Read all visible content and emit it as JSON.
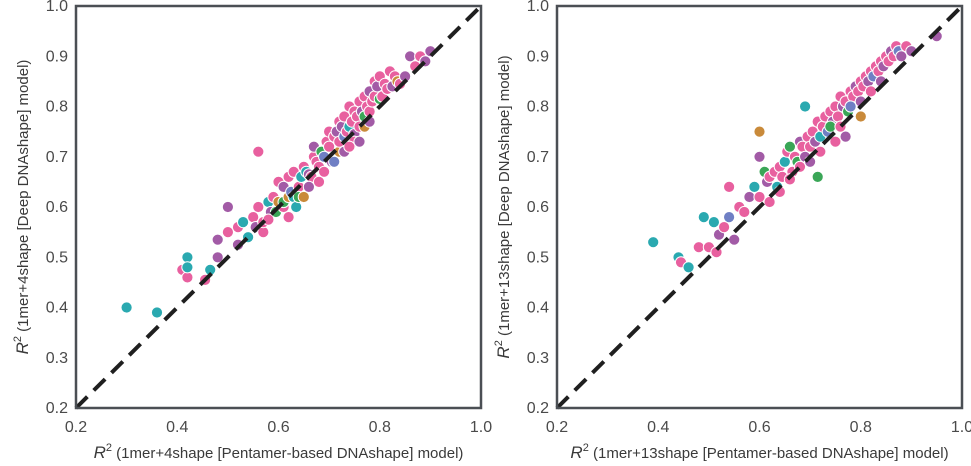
{
  "palette": [
    "#e8609f",
    "#a25ba6",
    "#2aa9b0",
    "#3aa657",
    "#c98a3a",
    "#6f7fc4"
  ],
  "chart_data": [
    {
      "type": "scatter",
      "xlabel_prefix": "R",
      "xlabel_sup": "2",
      "xlabel_text": " (1mer+4shape [Pentamer-based DNAshape] model)",
      "ylabel_prefix": "R",
      "ylabel_sup": "2",
      "ylabel_text": " (1mer+4shape [Deep DNAshape] model)",
      "xlim": [
        0.2,
        1.0
      ],
      "ylim": [
        0.2,
        1.0
      ],
      "xticks": [
        "0.2",
        "0.4",
        "0.6",
        "0.8",
        "1.0"
      ],
      "yticks": [
        "0.2",
        "0.3",
        "0.4",
        "0.5",
        "0.6",
        "0.7",
        "0.8",
        "0.9",
        "1.0"
      ],
      "reference_line": "y = x",
      "grid": false,
      "points": [
        [
          0.3,
          0.4,
          2
        ],
        [
          0.36,
          0.39,
          2
        ],
        [
          0.42,
          0.5,
          2
        ],
        [
          0.41,
          0.475,
          0
        ],
        [
          0.42,
          0.46,
          0
        ],
        [
          0.42,
          0.48,
          2
        ],
        [
          0.455,
          0.455,
          0
        ],
        [
          0.465,
          0.475,
          2
        ],
        [
          0.48,
          0.5,
          1
        ],
        [
          0.48,
          0.535,
          1
        ],
        [
          0.5,
          0.55,
          0
        ],
        [
          0.5,
          0.6,
          1
        ],
        [
          0.52,
          0.525,
          1
        ],
        [
          0.52,
          0.56,
          0
        ],
        [
          0.53,
          0.57,
          2
        ],
        [
          0.54,
          0.54,
          2
        ],
        [
          0.55,
          0.58,
          0
        ],
        [
          0.56,
          0.71,
          0
        ],
        [
          0.56,
          0.6,
          0
        ],
        [
          0.555,
          0.56,
          1
        ],
        [
          0.57,
          0.55,
          0
        ],
        [
          0.57,
          0.57,
          0
        ],
        [
          0.58,
          0.61,
          2
        ],
        [
          0.585,
          0.59,
          1
        ],
        [
          0.59,
          0.62,
          0
        ],
        [
          0.595,
          0.59,
          3
        ],
        [
          0.6,
          0.61,
          4
        ],
        [
          0.6,
          0.65,
          0
        ],
        [
          0.61,
          0.6,
          0
        ],
        [
          0.61,
          0.61,
          3
        ],
        [
          0.61,
          0.64,
          1
        ],
        [
          0.62,
          0.62,
          4
        ],
        [
          0.62,
          0.66,
          0
        ],
        [
          0.625,
          0.63,
          5
        ],
        [
          0.63,
          0.62,
          2
        ],
        [
          0.63,
          0.67,
          0
        ],
        [
          0.635,
          0.6,
          2
        ],
        [
          0.64,
          0.64,
          0
        ],
        [
          0.64,
          0.62,
          3
        ],
        [
          0.645,
          0.66,
          2
        ],
        [
          0.65,
          0.62,
          4
        ],
        [
          0.65,
          0.68,
          0
        ],
        [
          0.655,
          0.67,
          2
        ],
        [
          0.66,
          0.665,
          1
        ],
        [
          0.665,
          0.66,
          0
        ],
        [
          0.67,
          0.7,
          0
        ],
        [
          0.67,
          0.72,
          1
        ],
        [
          0.675,
          0.69,
          0
        ],
        [
          0.68,
          0.68,
          0
        ],
        [
          0.685,
          0.71,
          3
        ],
        [
          0.69,
          0.7,
          5
        ],
        [
          0.695,
          0.73,
          0
        ],
        [
          0.7,
          0.72,
          0
        ],
        [
          0.7,
          0.75,
          0
        ],
        [
          0.705,
          0.69,
          1
        ],
        [
          0.71,
          0.74,
          0
        ],
        [
          0.715,
          0.75,
          1
        ],
        [
          0.72,
          0.71,
          4
        ],
        [
          0.72,
          0.73,
          0
        ],
        [
          0.72,
          0.77,
          0
        ],
        [
          0.725,
          0.76,
          1
        ],
        [
          0.73,
          0.74,
          5
        ],
        [
          0.73,
          0.78,
          0
        ],
        [
          0.735,
          0.75,
          0
        ],
        [
          0.74,
          0.8,
          0
        ],
        [
          0.74,
          0.76,
          2
        ],
        [
          0.745,
          0.77,
          0
        ],
        [
          0.75,
          0.79,
          0
        ],
        [
          0.75,
          0.745,
          1
        ],
        [
          0.755,
          0.78,
          0
        ],
        [
          0.76,
          0.81,
          0
        ],
        [
          0.76,
          0.76,
          0
        ],
        [
          0.765,
          0.79,
          1
        ],
        [
          0.77,
          0.82,
          0
        ],
        [
          0.77,
          0.78,
          3
        ],
        [
          0.775,
          0.8,
          0
        ],
        [
          0.78,
          0.83,
          1
        ],
        [
          0.78,
          0.79,
          0
        ],
        [
          0.785,
          0.81,
          0
        ],
        [
          0.79,
          0.85,
          0
        ],
        [
          0.79,
          0.82,
          0
        ],
        [
          0.795,
          0.84,
          1
        ],
        [
          0.8,
          0.86,
          0
        ],
        [
          0.8,
          0.815,
          3
        ],
        [
          0.805,
          0.82,
          0
        ],
        [
          0.81,
          0.845,
          0
        ],
        [
          0.815,
          0.835,
          0
        ],
        [
          0.82,
          0.87,
          0
        ],
        [
          0.825,
          0.84,
          1
        ],
        [
          0.83,
          0.86,
          0
        ],
        [
          0.835,
          0.85,
          4
        ],
        [
          0.84,
          0.845,
          0
        ],
        [
          0.85,
          0.86,
          1
        ],
        [
          0.86,
          0.9,
          1
        ],
        [
          0.87,
          0.88,
          0
        ],
        [
          0.88,
          0.9,
          0
        ],
        [
          0.89,
          0.89,
          1
        ],
        [
          0.9,
          0.91,
          1
        ],
        [
          0.77,
          0.76,
          4
        ],
        [
          0.78,
          0.77,
          1
        ],
        [
          0.75,
          0.73,
          0
        ],
        [
          0.68,
          0.65,
          0
        ],
        [
          0.66,
          0.64,
          1
        ],
        [
          0.69,
          0.67,
          0
        ],
        [
          0.73,
          0.71,
          1
        ],
        [
          0.62,
          0.58,
          0
        ],
        [
          0.76,
          0.73,
          1
        ],
        [
          0.74,
          0.72,
          0
        ],
        [
          0.71,
          0.69,
          5
        ],
        [
          0.58,
          0.575,
          0
        ]
      ]
    },
    {
      "type": "scatter",
      "xlabel_prefix": "R",
      "xlabel_sup": "2",
      "xlabel_text": " (1mer+13shape [Pentamer-based DNAshape] model)",
      "ylabel_prefix": "R",
      "ylabel_sup": "2",
      "ylabel_text": " (1mer+13shape [Deep DNAshape] model)",
      "xlim": [
        0.2,
        1.0
      ],
      "ylim": [
        0.2,
        1.0
      ],
      "xticks": [
        "0.2",
        "0.4",
        "0.6",
        "0.8",
        "1.0"
      ],
      "yticks": [
        "0.2",
        "0.3",
        "0.4",
        "0.5",
        "0.6",
        "0.7",
        "0.8",
        "0.9",
        "1.0"
      ],
      "reference_line": "y = x",
      "grid": false,
      "points": [
        [
          0.39,
          0.53,
          2
        ],
        [
          0.44,
          0.5,
          2
        ],
        [
          0.445,
          0.49,
          0
        ],
        [
          0.46,
          0.48,
          2
        ],
        [
          0.48,
          0.52,
          0
        ],
        [
          0.49,
          0.58,
          2
        ],
        [
          0.5,
          0.52,
          0
        ],
        [
          0.51,
          0.57,
          2
        ],
        [
          0.515,
          0.51,
          0
        ],
        [
          0.52,
          0.545,
          1
        ],
        [
          0.53,
          0.56,
          0
        ],
        [
          0.54,
          0.64,
          0
        ],
        [
          0.54,
          0.58,
          5
        ],
        [
          0.55,
          0.535,
          1
        ],
        [
          0.56,
          0.6,
          0
        ],
        [
          0.57,
          0.59,
          0
        ],
        [
          0.58,
          0.62,
          1
        ],
        [
          0.59,
          0.64,
          2
        ],
        [
          0.6,
          0.75,
          4
        ],
        [
          0.6,
          0.7,
          1
        ],
        [
          0.6,
          0.62,
          0
        ],
        [
          0.61,
          0.67,
          3
        ],
        [
          0.615,
          0.65,
          1
        ],
        [
          0.62,
          0.66,
          0
        ],
        [
          0.63,
          0.67,
          0
        ],
        [
          0.635,
          0.64,
          2
        ],
        [
          0.64,
          0.68,
          0
        ],
        [
          0.645,
          0.66,
          0
        ],
        [
          0.65,
          0.69,
          2
        ],
        [
          0.655,
          0.71,
          0
        ],
        [
          0.66,
          0.72,
          3
        ],
        [
          0.665,
          0.67,
          0
        ],
        [
          0.67,
          0.7,
          0
        ],
        [
          0.675,
          0.69,
          3
        ],
        [
          0.68,
          0.73,
          1
        ],
        [
          0.685,
          0.72,
          0
        ],
        [
          0.69,
          0.8,
          2
        ],
        [
          0.69,
          0.7,
          1
        ],
        [
          0.695,
          0.74,
          0
        ],
        [
          0.7,
          0.72,
          0
        ],
        [
          0.705,
          0.75,
          0
        ],
        [
          0.71,
          0.73,
          1
        ],
        [
          0.715,
          0.66,
          3
        ],
        [
          0.715,
          0.77,
          0
        ],
        [
          0.72,
          0.74,
          2
        ],
        [
          0.725,
          0.76,
          0
        ],
        [
          0.73,
          0.78,
          0
        ],
        [
          0.735,
          0.75,
          5
        ],
        [
          0.74,
          0.79,
          0
        ],
        [
          0.745,
          0.77,
          1
        ],
        [
          0.75,
          0.8,
          0
        ],
        [
          0.755,
          0.78,
          0
        ],
        [
          0.76,
          0.82,
          0
        ],
        [
          0.765,
          0.8,
          1
        ],
        [
          0.77,
          0.81,
          0
        ],
        [
          0.775,
          0.79,
          3
        ],
        [
          0.78,
          0.83,
          0
        ],
        [
          0.785,
          0.82,
          0
        ],
        [
          0.79,
          0.84,
          1
        ],
        [
          0.795,
          0.83,
          0
        ],
        [
          0.8,
          0.78,
          4
        ],
        [
          0.8,
          0.85,
          0
        ],
        [
          0.805,
          0.84,
          0
        ],
        [
          0.81,
          0.86,
          0
        ],
        [
          0.815,
          0.85,
          1
        ],
        [
          0.82,
          0.87,
          0
        ],
        [
          0.825,
          0.86,
          5
        ],
        [
          0.83,
          0.88,
          0
        ],
        [
          0.835,
          0.87,
          0
        ],
        [
          0.84,
          0.89,
          0
        ],
        [
          0.845,
          0.88,
          1
        ],
        [
          0.85,
          0.9,
          0
        ],
        [
          0.855,
          0.89,
          0
        ],
        [
          0.86,
          0.91,
          1
        ],
        [
          0.865,
          0.9,
          0
        ],
        [
          0.87,
          0.92,
          0
        ],
        [
          0.875,
          0.91,
          5
        ],
        [
          0.88,
          0.9,
          1
        ],
        [
          0.89,
          0.92,
          0
        ],
        [
          0.9,
          0.91,
          1
        ],
        [
          0.95,
          0.94,
          1
        ],
        [
          0.75,
          0.73,
          0
        ],
        [
          0.72,
          0.71,
          0
        ],
        [
          0.68,
          0.68,
          0
        ],
        [
          0.66,
          0.655,
          0
        ],
        [
          0.78,
          0.8,
          5
        ],
        [
          0.8,
          0.81,
          1
        ],
        [
          0.74,
          0.76,
          3
        ],
        [
          0.76,
          0.76,
          0
        ],
        [
          0.82,
          0.83,
          0
        ],
        [
          0.64,
          0.63,
          0
        ],
        [
          0.7,
          0.69,
          1
        ],
        [
          0.62,
          0.61,
          0
        ],
        [
          0.77,
          0.74,
          1
        ],
        [
          0.84,
          0.85,
          1
        ]
      ]
    }
  ]
}
